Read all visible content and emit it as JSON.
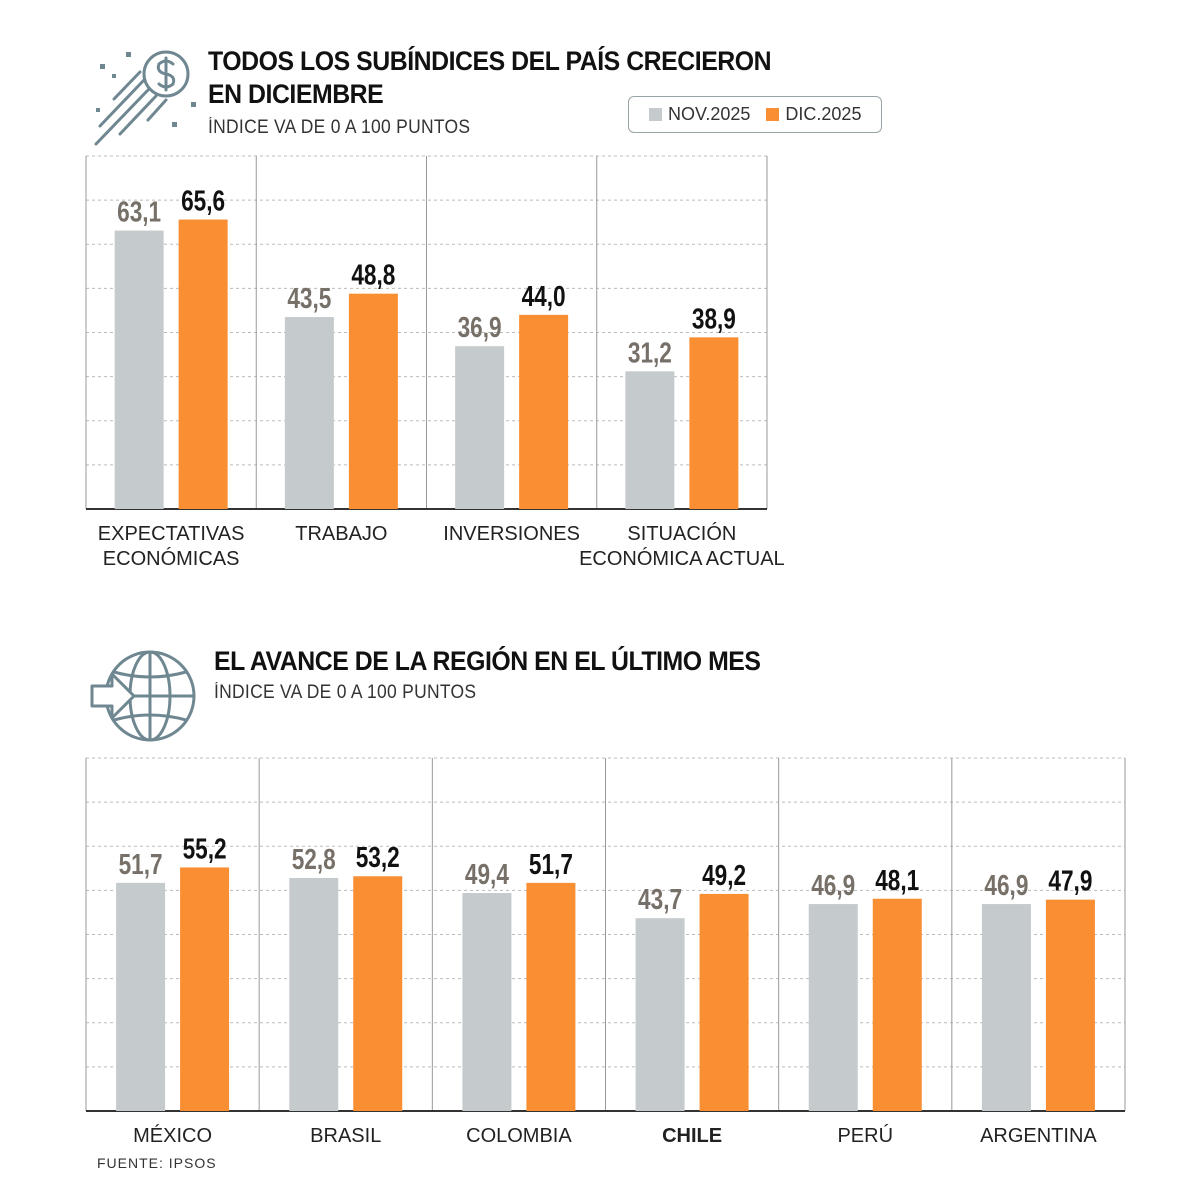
{
  "colors": {
    "nov": "#c5cbcd",
    "dic": "#f98e33",
    "grid": "#bbbbbb",
    "axis": "#333333",
    "nov_label": "#777069",
    "dic_label": "#111111"
  },
  "chart1": {
    "title": "TODOS LOS SUBÍNDICES DEL PAÍS CRECIERON\nEN DICIEMBRE",
    "subtitle": "ÍNDICE VA DE 0 A 100 PUNTOS",
    "icon": "dollar-coin-icon"
  },
  "chart2": {
    "title": "EL AVANCE DE LA REGIÓN EN EL ÚLTIMO MES",
    "subtitle": "ÍNDICE VA DE 0 A 100 PUNTOS",
    "icon": "globe-arrow-icon"
  },
  "legend": {
    "nov": "NOV.2025",
    "dic": "DIC.2025"
  },
  "source": "FUENTE: IPSOS",
  "chart_data": [
    {
      "type": "bar",
      "title": "TODOS LOS SUBÍNDICES DEL PAÍS CRECIERON EN DICIEMBRE",
      "subtitle": "ÍNDICE VA DE 0 A 100 PUNTOS",
      "categories": [
        "EXPECTATIVAS\nECONÓMICAS",
        "TRABAJO",
        "INVERSIONES",
        "SITUACIÓN\nECONÓMICA ACTUAL"
      ],
      "series": [
        {
          "name": "NOV.2025",
          "values": [
            63.1,
            43.5,
            36.9,
            31.2
          ],
          "labels": [
            "63,1",
            "43,5",
            "36,9",
            "31,2"
          ]
        },
        {
          "name": "DIC.2025",
          "values": [
            65.6,
            48.8,
            44.0,
            38.9
          ],
          "labels": [
            "65,6",
            "48,8",
            "44,0",
            "38,9"
          ]
        }
      ],
      "ylim": [
        0,
        80
      ],
      "grid": true,
      "legend_position": "top-right"
    },
    {
      "type": "bar",
      "title": "EL AVANCE DE LA REGIÓN EN EL ÚLTIMO MES",
      "subtitle": "ÍNDICE VA DE 0 A 100 PUNTOS",
      "categories": [
        "MÉXICO",
        "BRASIL",
        "COLOMBIA",
        "CHILE",
        "PERÚ",
        "ARGENTINA"
      ],
      "highlight": "CHILE",
      "series": [
        {
          "name": "NOV.2025",
          "values": [
            51.7,
            52.8,
            49.4,
            43.7,
            46.9,
            46.9
          ],
          "labels": [
            "51,7",
            "52,8",
            "49,4",
            "43,7",
            "46,9",
            "46,9"
          ]
        },
        {
          "name": "DIC.2025",
          "values": [
            55.2,
            53.2,
            51.7,
            49.2,
            48.1,
            47.9
          ],
          "labels": [
            "55,2",
            "53,2",
            "51,7",
            "49,2",
            "48,1",
            "47,9"
          ]
        }
      ],
      "ylim": [
        0,
        80
      ],
      "grid": true
    }
  ]
}
